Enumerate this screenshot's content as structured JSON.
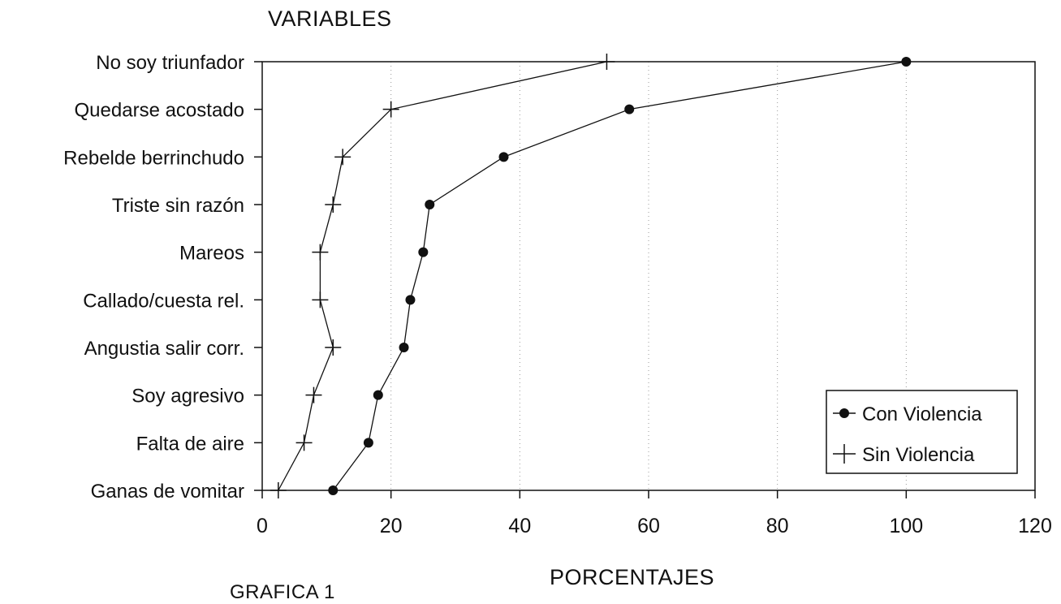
{
  "header": {
    "y_title": "VARIABLES",
    "footer_caption": "GRAFICA 1"
  },
  "chart_data": {
    "type": "line",
    "orientation": "horizontal",
    "title": "",
    "xlabel": "PORCENTAJES",
    "ylabel": "VARIABLES",
    "xlim": [
      0,
      120
    ],
    "xticks": [
      0,
      20,
      40,
      60,
      80,
      100,
      120
    ],
    "categories": [
      "No soy triunfador",
      "Quedarse acostado",
      "Rebelde berrinchudo",
      "Triste sin razón",
      "Mareos",
      "Callado/cuesta rel.",
      "Angustia salir corr.",
      "Soy agresivo",
      "Falta de aire",
      "Ganas de vomitar"
    ],
    "series": [
      {
        "name": "Con Violencia",
        "marker": "dot",
        "values": [
          100,
          57,
          37.5,
          26,
          25,
          23,
          22,
          18,
          16.5,
          11
        ]
      },
      {
        "name": "Sin Violencia",
        "marker": "plus",
        "values": [
          53.5,
          20,
          12.5,
          11,
          9,
          9,
          11,
          8,
          6.5,
          2.5
        ]
      }
    ],
    "grid": "dotted vertical",
    "legend_position": "bottom-right",
    "colors": {
      "line": "#111111",
      "grid": "#999999"
    }
  }
}
